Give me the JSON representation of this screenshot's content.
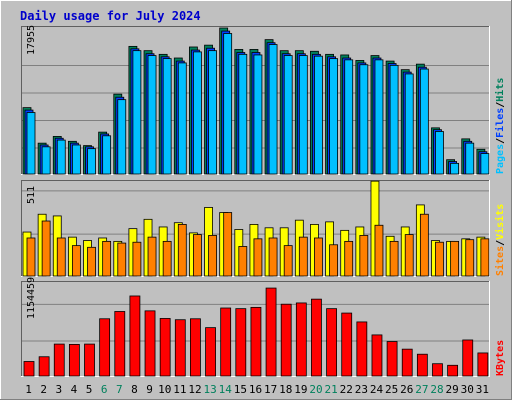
{
  "title": "Daily usage for July 2024",
  "colors": {
    "background": "#c0c0c0",
    "frame_light": "#ffffff",
    "frame_dark": "#808080",
    "title": "#0000cc",
    "hits": "#00805c",
    "files": "#0040ff",
    "pages": "#00c0ff",
    "visits": "#ffff00",
    "sites": "#ff8000",
    "kbytes": "#ff0000",
    "weekend_label": "#00805c",
    "weekday_label": "#000000",
    "grid": "#808080"
  },
  "legend": {
    "hits": "Hits",
    "files": "Files",
    "pages": "Pages",
    "visits": "Visits",
    "sites": "Sites",
    "kbytes": "KBytes",
    "sep": "/"
  },
  "chart_data": [
    {
      "type": "bar",
      "title": "Daily usage for July 2024",
      "categories": [
        "1",
        "2",
        "3",
        "4",
        "5",
        "6",
        "7",
        "8",
        "9",
        "10",
        "11",
        "12",
        "13",
        "14",
        "15",
        "16",
        "17",
        "18",
        "19",
        "20",
        "21",
        "22",
        "23",
        "24",
        "25",
        "26",
        "27",
        "28",
        "29",
        "30",
        "31"
      ],
      "weekend_days": [
        "6",
        "7",
        "13",
        "14",
        "20",
        "21",
        "27",
        "28"
      ],
      "ytick": "17955",
      "ylim": [
        0,
        24000
      ],
      "series": [
        {
          "name": "Hits",
          "values": [
            11000,
            5200,
            6300,
            5500,
            4800,
            7000,
            13200,
            21000,
            20300,
            19700,
            19100,
            20900,
            21200,
            24000,
            20500,
            20500,
            22100,
            20300,
            20300,
            20200,
            19700,
            19600,
            18700,
            19500,
            18600,
            17200,
            18100,
            7700,
            2500,
            5900,
            4200
          ]
        },
        {
          "name": "Files",
          "values": [
            10600,
            4900,
            6000,
            5200,
            4600,
            6700,
            12700,
            20600,
            19800,
            19300,
            18600,
            20400,
            20700,
            23500,
            20000,
            20000,
            21600,
            19800,
            19800,
            19700,
            19300,
            19100,
            18300,
            19100,
            18200,
            16800,
            17600,
            7400,
            2200,
            5500,
            3800
          ]
        },
        {
          "name": "Pages",
          "values": [
            10200,
            4600,
            5700,
            4900,
            4300,
            6400,
            12300,
            20300,
            19500,
            19000,
            18300,
            20100,
            20300,
            23100,
            19700,
            19600,
            21300,
            19500,
            19500,
            19400,
            19000,
            18800,
            18000,
            18800,
            17900,
            16500,
            17300,
            7100,
            1900,
            5200,
            3500
          ]
        }
      ]
    },
    {
      "type": "bar",
      "categories": [
        "1",
        "2",
        "3",
        "4",
        "5",
        "6",
        "7",
        "8",
        "9",
        "10",
        "11",
        "12",
        "13",
        "14",
        "15",
        "16",
        "17",
        "18",
        "19",
        "20",
        "21",
        "22",
        "23",
        "24",
        "25",
        "26",
        "27",
        "28",
        "29",
        "30",
        "31"
      ],
      "ytick": "511",
      "ylim": [
        0,
        560
      ],
      "series": [
        {
          "name": "Visits",
          "values": [
            265,
            370,
            360,
            235,
            215,
            230,
            210,
            285,
            340,
            295,
            320,
            260,
            410,
            380,
            280,
            310,
            290,
            290,
            335,
            310,
            325,
            275,
            295,
            565,
            240,
            295,
            425,
            215,
            210,
            225,
            235
          ]
        },
        {
          "name": "Sites",
          "values": [
            230,
            330,
            230,
            185,
            175,
            210,
            200,
            205,
            235,
            210,
            310,
            250,
            245,
            380,
            180,
            225,
            230,
            185,
            235,
            230,
            190,
            210,
            245,
            305,
            210,
            250,
            370,
            205,
            210,
            220,
            225
          ]
        }
      ]
    },
    {
      "type": "bar",
      "categories": [
        "1",
        "2",
        "3",
        "4",
        "5",
        "6",
        "7",
        "8",
        "9",
        "10",
        "11",
        "12",
        "13",
        "14",
        "15",
        "16",
        "17",
        "18",
        "19",
        "20",
        "21",
        "22",
        "23",
        "24",
        "25",
        "26",
        "27",
        "28",
        "29",
        "30",
        "31"
      ],
      "ytick": "1154459",
      "ylim": [
        0,
        1485000
      ],
      "series": [
        {
          "name": "KBytes",
          "values": [
            245000,
            320000,
            520000,
            515000,
            520000,
            920000,
            1035000,
            1280000,
            1045000,
            925000,
            905000,
            920000,
            780000,
            1090000,
            1080000,
            1100000,
            1405000,
            1150000,
            1170000,
            1230000,
            1080000,
            1010000,
            870000,
            665000,
            560000,
            440000,
            360000,
            210000,
            185000,
            585000,
            380000
          ]
        }
      ]
    }
  ]
}
